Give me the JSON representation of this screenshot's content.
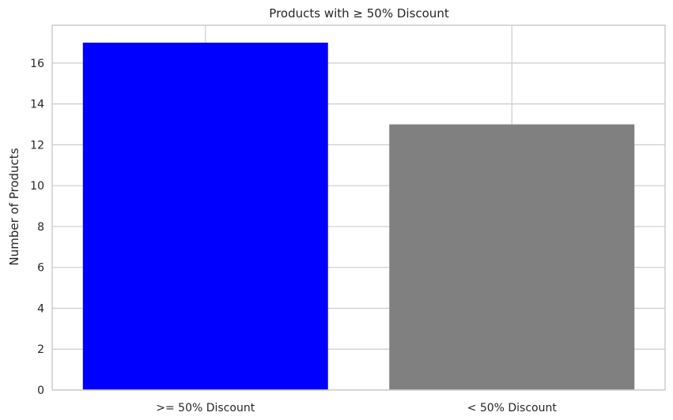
{
  "chart_data": {
    "type": "bar",
    "title": "Products with ≥ 50% Discount",
    "xlabel": "",
    "ylabel": "Number of Products",
    "categories": [
      ">= 50% Discount",
      "< 50% Discount"
    ],
    "values": [
      17,
      13
    ],
    "colors": [
      "#0000ff",
      "#808080"
    ],
    "ylim": [
      0,
      17.85
    ],
    "yticks": [
      0,
      2,
      4,
      6,
      8,
      10,
      12,
      14,
      16
    ],
    "grid": true,
    "legend": "none"
  }
}
